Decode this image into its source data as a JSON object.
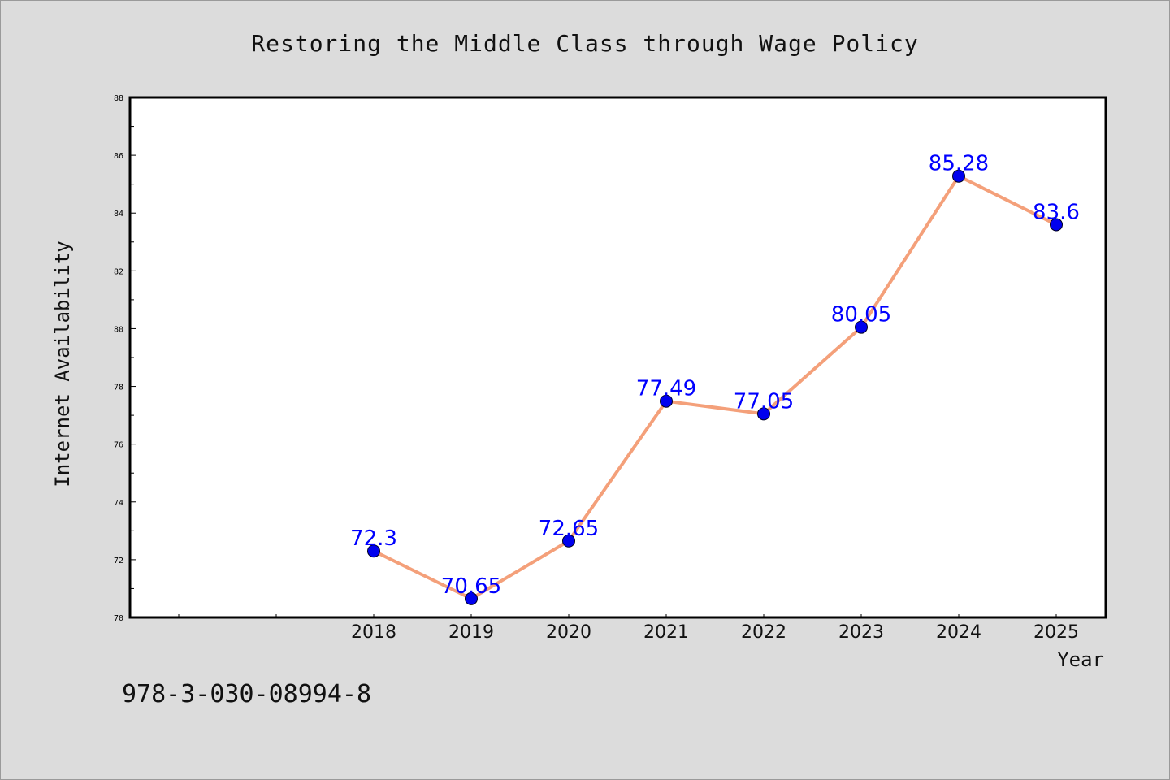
{
  "chart_data": {
    "type": "line",
    "title": "Restoring the Middle Class through Wage Policy",
    "xlabel": "Year",
    "ylabel": "Internet Availability",
    "categories": [
      "2018",
      "2019",
      "2020",
      "2021",
      "2022",
      "2023",
      "2024",
      "2025"
    ],
    "values": [
      72.3,
      70.65,
      72.65,
      77.49,
      77.05,
      80.05,
      85.28,
      83.6
    ],
    "data_labels": [
      "72.3",
      "70.65",
      "72.65",
      "77.49",
      "77.05",
      "80.05",
      "85.28",
      "83.6"
    ],
    "ylim": [
      70,
      88
    ],
    "yticks": [
      "70",
      "72",
      "74",
      "76",
      "78",
      "80",
      "82",
      "84",
      "86",
      "88"
    ],
    "grid": false,
    "legend": "none",
    "colors": {
      "line": "#f4a07a",
      "marker": "#0000ee",
      "data_label": "#0000ff",
      "plot_background": "#ffffff",
      "figure_background": "#dcdcdc"
    }
  },
  "footer": {
    "isbn": "978-3-030-08994-8"
  }
}
